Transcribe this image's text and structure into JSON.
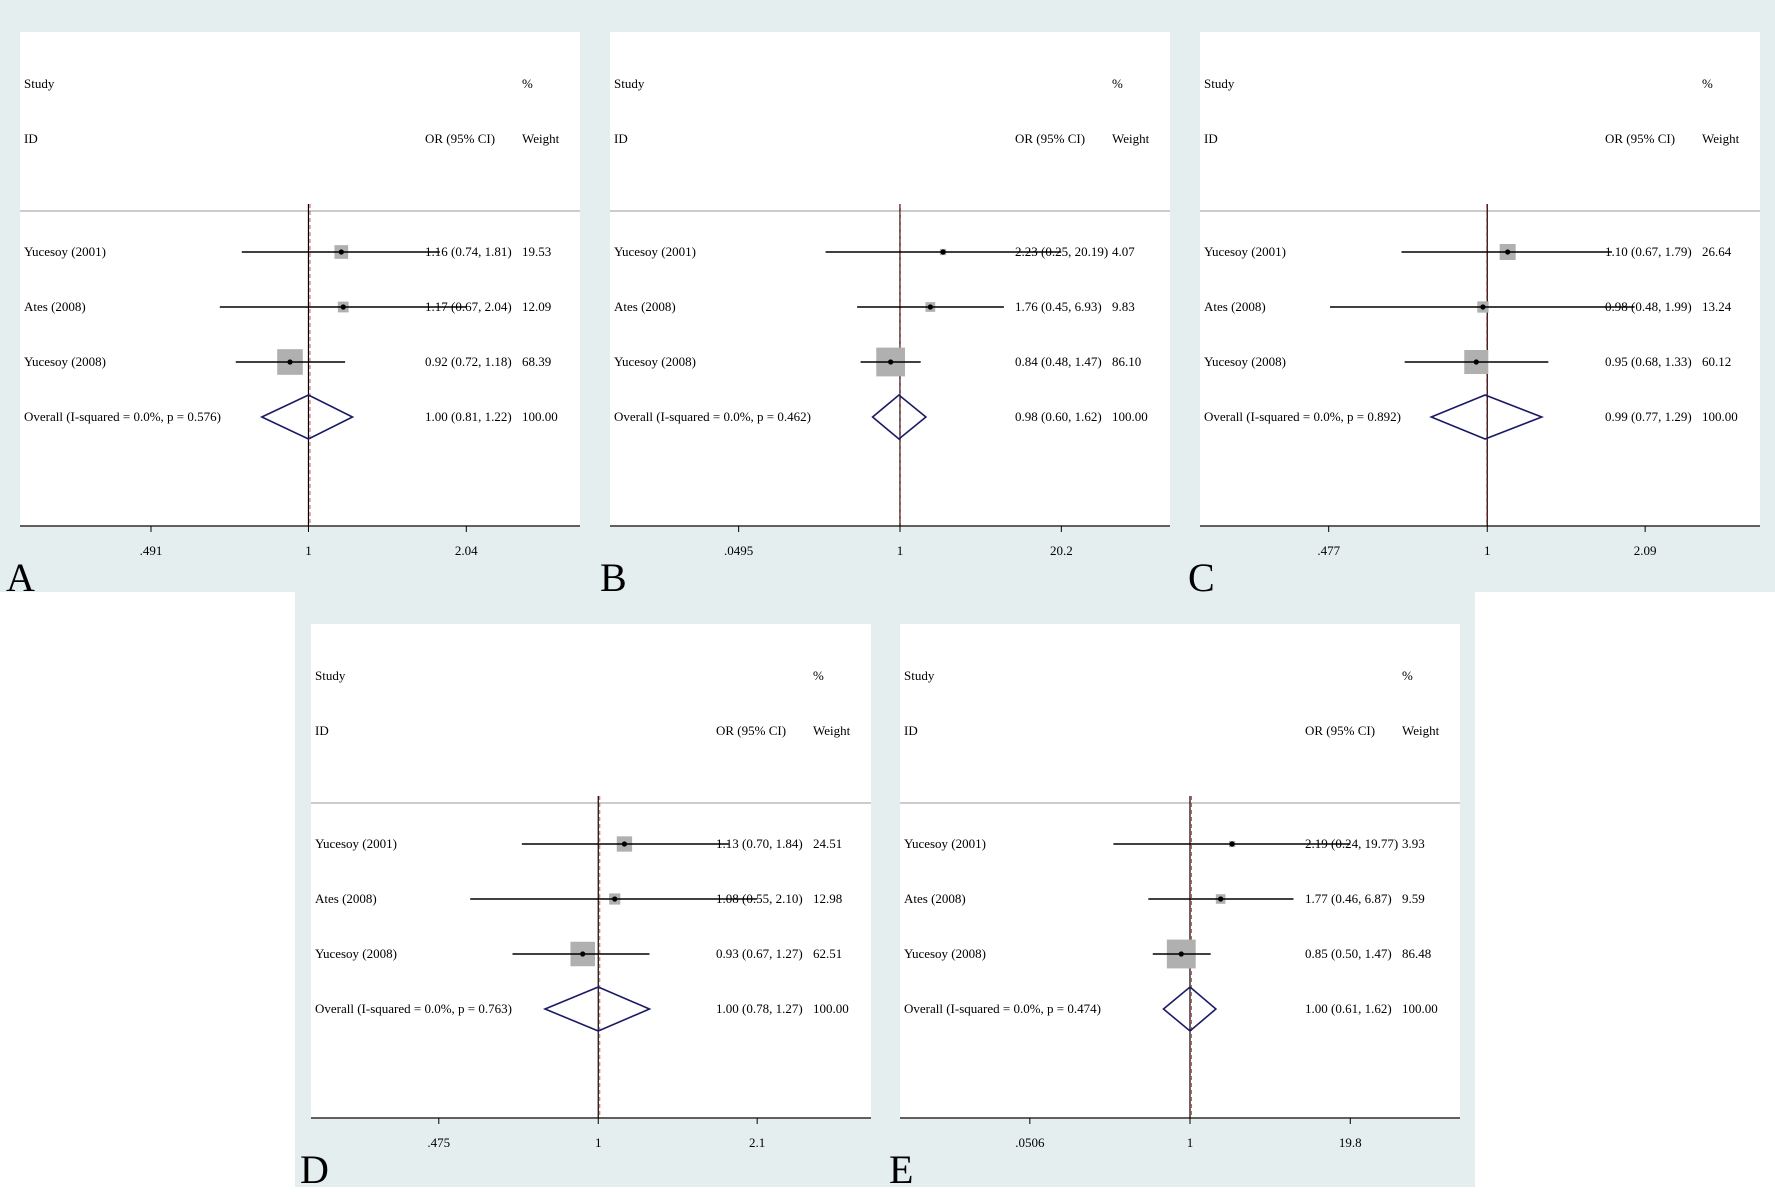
{
  "page": {
    "background": "#ffffff",
    "frame_color": "#e4eeee"
  },
  "colors": {
    "line": "#000000",
    "box": "#b0b0b0",
    "diamond": "#1a1a66",
    "null_line": "#000000",
    "ref_line": "#d05a5a"
  },
  "header": {
    "study": "Study",
    "id": "ID",
    "pct": "%",
    "or_ci": "OR (95% CI)",
    "weight": "Weight"
  },
  "chart_data": [
    {
      "type": "forest",
      "panel": "A",
      "scale": "log",
      "xlim": [
        0.39,
        2.6
      ],
      "ticks": [
        ".491",
        "1",
        "2.04"
      ],
      "tick_values": [
        0.491,
        1,
        2.04
      ],
      "null_value": 1,
      "studies": [
        {
          "label": "Yucesoy (2001)",
          "or": 1.16,
          "lo": 0.74,
          "hi": 1.81,
          "text": "1.16 (0.74, 1.81)",
          "weight": "19.53",
          "w": 19.53
        },
        {
          "label": "Ates (2008)",
          "or": 1.17,
          "lo": 0.67,
          "hi": 2.04,
          "text": "1.17 (0.67, 2.04)",
          "weight": "12.09",
          "w": 12.09
        },
        {
          "label": "Yucesoy (2008)",
          "or": 0.92,
          "lo": 0.72,
          "hi": 1.18,
          "text": "0.92 (0.72, 1.18)",
          "weight": "68.39",
          "w": 68.39
        }
      ],
      "overall": {
        "label": "Overall  (I-squared = 0.0%, p = 0.576)",
        "or": 1.0,
        "lo": 0.81,
        "hi": 1.22,
        "text": "1.00 (0.81, 1.22)",
        "weight": "100.00"
      }
    },
    {
      "type": "forest",
      "panel": "B",
      "scale": "log",
      "xlim": [
        0.02,
        50
      ],
      "ticks": [
        ".0495",
        "1",
        "20.2"
      ],
      "tick_values": [
        0.0495,
        1,
        20.2
      ],
      "null_value": 1,
      "studies": [
        {
          "label": "Yucesoy (2001)",
          "or": 2.23,
          "lo": 0.25,
          "hi": 20.19,
          "text": "2.23 (0.25, 20.19)",
          "weight": "4.07",
          "w": 4.07
        },
        {
          "label": "Ates (2008)",
          "or": 1.76,
          "lo": 0.45,
          "hi": 6.93,
          "text": "1.76 (0.45, 6.93)",
          "weight": "9.83",
          "w": 9.83
        },
        {
          "label": "Yucesoy (2008)",
          "or": 0.84,
          "lo": 0.48,
          "hi": 1.47,
          "text": "0.84 (0.48, 1.47)",
          "weight": "86.10",
          "w": 86.1
        }
      ],
      "overall": {
        "label": "Overall  (I-squared = 0.0%, p = 0.462)",
        "or": 0.98,
        "lo": 0.6,
        "hi": 1.62,
        "text": "0.98 (0.60, 1.62)",
        "weight": "100.00"
      }
    },
    {
      "type": "forest",
      "panel": "C",
      "scale": "log",
      "xlim": [
        0.38,
        2.7
      ],
      "ticks": [
        ".477",
        "1",
        "2.09"
      ],
      "tick_values": [
        0.477,
        1,
        2.09
      ],
      "null_value": 1,
      "studies": [
        {
          "label": "Yucesoy (2001)",
          "or": 1.1,
          "lo": 0.67,
          "hi": 1.79,
          "text": "1.10 (0.67, 1.79)",
          "weight": "26.64",
          "w": 26.64
        },
        {
          "label": "Ates (2008)",
          "or": 0.98,
          "lo": 0.48,
          "hi": 1.99,
          "text": "0.98 (0.48, 1.99)",
          "weight": "13.24",
          "w": 13.24
        },
        {
          "label": "Yucesoy (2008)",
          "or": 0.95,
          "lo": 0.68,
          "hi": 1.33,
          "text": "0.95 (0.68, 1.33)",
          "weight": "60.12",
          "w": 60.12
        }
      ],
      "overall": {
        "label": "Overall  (I-squared = 0.0%, p = 0.892)",
        "or": 0.99,
        "lo": 0.77,
        "hi": 1.29,
        "text": "0.99 (0.77, 1.29)",
        "weight": "100.00"
      }
    },
    {
      "type": "forest",
      "panel": "D",
      "scale": "log",
      "xlim": [
        0.38,
        2.7
      ],
      "ticks": [
        ".475",
        "1",
        "2.1"
      ],
      "tick_values": [
        0.475,
        1,
        2.1
      ],
      "null_value": 1,
      "studies": [
        {
          "label": "Yucesoy (2001)",
          "or": 1.13,
          "lo": 0.7,
          "hi": 1.84,
          "text": "1.13 (0.70, 1.84)",
          "weight": "24.51",
          "w": 24.51
        },
        {
          "label": "Ates (2008)",
          "or": 1.08,
          "lo": 0.55,
          "hi": 2.1,
          "text": "1.08 (0.55, 2.10)",
          "weight": "12.98",
          "w": 12.98
        },
        {
          "label": "Yucesoy (2008)",
          "or": 0.93,
          "lo": 0.67,
          "hi": 1.27,
          "text": "0.93 (0.67, 1.27)",
          "weight": "62.51",
          "w": 62.51
        }
      ],
      "overall": {
        "label": "Overall  (I-squared = 0.0%, p = 0.763)",
        "or": 1.0,
        "lo": 0.78,
        "hi": 1.27,
        "text": "1.00 (0.78, 1.27)",
        "weight": "100.00"
      }
    },
    {
      "type": "forest",
      "panel": "E",
      "scale": "log",
      "xlim": [
        0.02,
        50
      ],
      "ticks": [
        ".0506",
        "1",
        "19.8"
      ],
      "tick_values": [
        0.0506,
        1,
        19.8
      ],
      "null_value": 1,
      "studies": [
        {
          "label": "Yucesoy (2001)",
          "or": 2.19,
          "lo": 0.24,
          "hi": 19.77,
          "text": "2.19 (0.24, 19.77)",
          "weight": "3.93",
          "w": 3.93
        },
        {
          "label": "Ates (2008)",
          "or": 1.77,
          "lo": 0.46,
          "hi": 6.87,
          "text": "1.77 (0.46, 6.87)",
          "weight": "9.59",
          "w": 9.59
        },
        {
          "label": "Yucesoy (2008)",
          "or": 0.85,
          "lo": 0.5,
          "hi": 1.47,
          "text": "0.85 (0.50, 1.47)",
          "weight": "86.48",
          "w": 86.48
        }
      ],
      "overall": {
        "label": "Overall  (I-squared = 0.0%, p = 0.474)",
        "or": 1.0,
        "lo": 0.61,
        "hi": 1.62,
        "text": "1.00 (0.61, 1.62)",
        "weight": "100.00"
      }
    }
  ]
}
